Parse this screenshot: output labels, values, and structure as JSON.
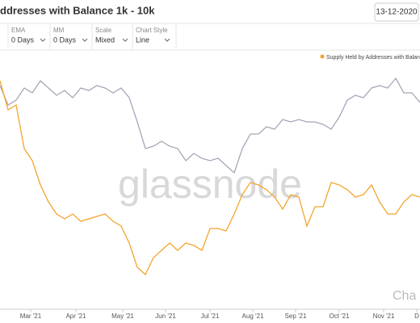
{
  "header": {
    "title": "ddresses with Balance 1k - 10k",
    "date": "13-12-2020"
  },
  "controls": [
    {
      "label": "EMA",
      "value": "0 Days"
    },
    {
      "label": "MM",
      "value": "0 Days"
    },
    {
      "label": "Scale",
      "value": "Mixed"
    },
    {
      "label": "Chart Style",
      "value": "Line"
    }
  ],
  "watermark": "glassnode",
  "corner_mark": "Cha",
  "chart_data": {
    "type": "line",
    "xlim": [
      0,
      52
    ],
    "xticks": [
      {
        "value": 3.8,
        "label": "Mar '21"
      },
      {
        "value": 9.4,
        "label": "Apr '21"
      },
      {
        "value": 15.2,
        "label": "May '21"
      },
      {
        "value": 20.5,
        "label": "Jun '21"
      },
      {
        "value": 26,
        "label": "Jul '21"
      },
      {
        "value": 31.3,
        "label": "Aug '21"
      },
      {
        "value": 36.6,
        "label": "Sep '21"
      },
      {
        "value": 42,
        "label": "Oct '21"
      },
      {
        "value": 47.5,
        "label": "Nov '21"
      },
      {
        "value": 51.6,
        "label": "D"
      }
    ],
    "ylim": [
      0,
      100
    ],
    "legend": "top-right",
    "series": [
      {
        "name": "Supply Held by Addresses with Balanc",
        "color": "#f4a42c",
        "values": [
          95,
          83,
          85,
          67,
          62,
          52,
          45,
          40,
          38,
          40,
          37,
          38,
          39,
          40,
          37,
          35,
          28,
          18,
          15,
          22,
          25,
          28,
          25,
          28,
          27,
          25,
          34,
          34,
          33,
          40,
          48,
          53,
          52,
          50,
          47,
          42,
          48,
          47,
          35,
          43,
          43,
          53,
          52,
          50,
          47,
          48,
          52,
          45,
          40,
          40,
          45,
          48,
          47
        ]
      },
      {
        "color": "#aaa4b8",
        "values": [
          93,
          85,
          87,
          92,
          90,
          95,
          92,
          89,
          91,
          88,
          92,
          91,
          93,
          92,
          90,
          92,
          88,
          78,
          67,
          68,
          70,
          68,
          67,
          62,
          65,
          63,
          62,
          63,
          60,
          57,
          67,
          73,
          73,
          76,
          75,
          79,
          78,
          79,
          78,
          78,
          77,
          75,
          80,
          87,
          89,
          88,
          92,
          93,
          92,
          96,
          90,
          90,
          86
        ]
      }
    ]
  }
}
